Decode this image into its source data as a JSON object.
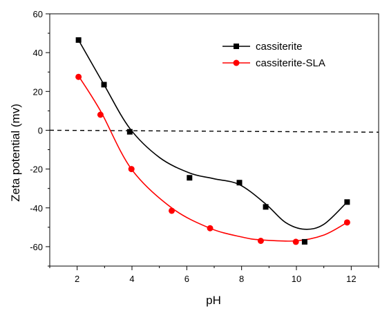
{
  "chart_data": {
    "type": "scatter",
    "title": "",
    "xlabel": "pH",
    "ylabel": "Zeta potential (mv)",
    "xlim": [
      1,
      13
    ],
    "ylim": [
      -70,
      60
    ],
    "x_ticks": [
      2,
      4,
      6,
      8,
      10,
      12
    ],
    "y_ticks": [
      -60,
      -40,
      -20,
      0,
      20,
      40,
      60
    ],
    "legend_position": "top-right",
    "zero_line": {
      "style": "dashed",
      "x": [
        1,
        13
      ],
      "y": [
        0,
        -1
      ]
    },
    "series": [
      {
        "name": "cassiterite",
        "color": "#000000",
        "marker": "square",
        "x": [
          2.05,
          2.98,
          3.92,
          6.1,
          7.92,
          8.88,
          10.3,
          11.85
        ],
        "y": [
          46.5,
          23.5,
          -0.8,
          -24.5,
          -27.0,
          -39.5,
          -57.5,
          -37.0
        ],
        "fit": [
          [
            2.05,
            46.5
          ],
          [
            2.98,
            23.5
          ],
          [
            3.92,
            1.0
          ],
          [
            5.0,
            -14.0
          ],
          [
            6.1,
            -22.0
          ],
          [
            7.0,
            -25.0
          ],
          [
            7.92,
            -28.0
          ],
          [
            8.88,
            -38.0
          ],
          [
            9.6,
            -47.5
          ],
          [
            10.3,
            -51.0
          ],
          [
            11.0,
            -48.5
          ],
          [
            11.85,
            -37.0
          ]
        ]
      },
      {
        "name": "cassiterite-SLA",
        "color": "#ff0000",
        "marker": "circle",
        "x": [
          2.05,
          2.85,
          3.98,
          5.45,
          6.85,
          8.7,
          9.98,
          11.85
        ],
        "y": [
          27.5,
          8.0,
          -20.0,
          -41.5,
          -50.5,
          -57.0,
          -57.5,
          -47.5
        ],
        "fit": [
          [
            2.05,
            28.0
          ],
          [
            2.85,
            10.0
          ],
          [
            3.98,
            -20.0
          ],
          [
            5.45,
            -40.0
          ],
          [
            6.85,
            -50.5
          ],
          [
            8.0,
            -55.0
          ],
          [
            8.7,
            -56.5
          ],
          [
            9.98,
            -57.0
          ],
          [
            11.0,
            -54.0
          ],
          [
            11.85,
            -47.5
          ]
        ]
      }
    ]
  }
}
